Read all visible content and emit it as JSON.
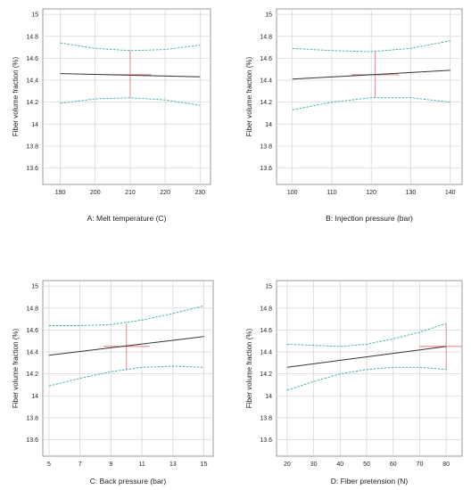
{
  "chart_data": [
    {
      "type": "line",
      "xlabel": "A: Melt temperature (C)",
      "ylabel": "Fiber volume fraction (%)",
      "xlim": [
        185,
        233
      ],
      "ylim": [
        13.45,
        15.05
      ],
      "xticks": [
        190,
        200,
        210,
        220,
        230
      ],
      "yticks": [
        13.6,
        13.8,
        14,
        14.2,
        14.4,
        14.6,
        14.8,
        15
      ],
      "grid": true,
      "series": [
        {
          "role": "prediction",
          "color": "#333333",
          "x": [
            190,
            230
          ],
          "y": [
            14.46,
            14.43
          ]
        },
        {
          "role": "upper-band",
          "color": "#3aa6a6",
          "x": [
            190,
            200,
            210,
            220,
            230
          ],
          "y": [
            14.74,
            14.69,
            14.67,
            14.68,
            14.72
          ]
        },
        {
          "role": "lower-band",
          "color": "#3aa6a6",
          "x": [
            190,
            200,
            210,
            220,
            230
          ],
          "y": [
            14.19,
            14.23,
            14.24,
            14.22,
            14.17
          ]
        }
      ],
      "crosshair": {
        "color": "#e87a7a",
        "x": 210,
        "y": 14.45,
        "x_span": [
          204,
          216
        ],
        "y_span": [
          14.24,
          14.67
        ]
      }
    },
    {
      "type": "line",
      "xlabel": "B: Injection pressure (bar)",
      "ylabel": "Fiber volume fraction (%)",
      "xlim": [
        96,
        143
      ],
      "ylim": [
        13.45,
        15.05
      ],
      "xticks": [
        100,
        110,
        120,
        130,
        140
      ],
      "yticks": [
        13.6,
        13.8,
        14,
        14.2,
        14.4,
        14.6,
        14.8,
        15
      ],
      "grid": true,
      "series": [
        {
          "role": "prediction",
          "color": "#333333",
          "x": [
            100,
            140
          ],
          "y": [
            14.41,
            14.49
          ]
        },
        {
          "role": "upper-band",
          "color": "#3aa6a6",
          "x": [
            100,
            110,
            120,
            130,
            140
          ],
          "y": [
            14.69,
            14.67,
            14.66,
            14.69,
            14.76
          ]
        },
        {
          "role": "lower-band",
          "color": "#3aa6a6",
          "x": [
            100,
            110,
            120,
            130,
            140
          ],
          "y": [
            14.13,
            14.2,
            14.24,
            14.24,
            14.2
          ]
        }
      ],
      "crosshair": {
        "color": "#e87a7a",
        "x": 121,
        "y": 14.45,
        "x_span": [
          115,
          127
        ],
        "y_span": [
          14.24,
          14.67
        ]
      }
    },
    {
      "type": "line",
      "xlabel": "C: Back pressure (bar)",
      "ylabel": "Fiber volume fraction (%)",
      "xlim": [
        4.6,
        15.6
      ],
      "ylim": [
        13.45,
        15.05
      ],
      "xticks": [
        5,
        7,
        9,
        11,
        13,
        15
      ],
      "yticks": [
        13.6,
        13.8,
        14,
        14.2,
        14.4,
        14.6,
        14.8,
        15
      ],
      "grid": true,
      "series": [
        {
          "role": "prediction",
          "color": "#333333",
          "x": [
            5,
            15
          ],
          "y": [
            14.37,
            14.54
          ]
        },
        {
          "role": "upper-band",
          "color": "#3aa6a6",
          "x": [
            5,
            7,
            9,
            11,
            13,
            15
          ],
          "y": [
            14.64,
            14.64,
            14.65,
            14.69,
            14.75,
            14.82
          ]
        },
        {
          "role": "lower-band",
          "color": "#3aa6a6",
          "x": [
            5,
            7,
            9,
            11,
            13,
            15
          ],
          "y": [
            14.09,
            14.16,
            14.22,
            14.26,
            14.27,
            14.26
          ]
        }
      ],
      "crosshair": {
        "color": "#e87a7a",
        "x": 10,
        "y": 14.45,
        "x_span": [
          8.5,
          11.5
        ],
        "y_span": [
          14.24,
          14.66
        ]
      }
    },
    {
      "type": "line",
      "xlabel": "D: Fiber pretension (N)",
      "ylabel": "Fiber volume fraction (%)",
      "xlim": [
        16,
        86
      ],
      "ylim": [
        13.45,
        15.05
      ],
      "xticks": [
        20,
        30,
        40,
        50,
        60,
        70,
        80
      ],
      "yticks": [
        13.6,
        13.8,
        14,
        14.2,
        14.4,
        14.6,
        14.8,
        15
      ],
      "grid": true,
      "series": [
        {
          "role": "prediction",
          "color": "#333333",
          "x": [
            20,
            80
          ],
          "y": [
            14.26,
            14.45
          ]
        },
        {
          "role": "upper-band",
          "color": "#3aa6a6",
          "x": [
            20,
            30,
            40,
            50,
            60,
            70,
            80
          ],
          "y": [
            14.47,
            14.46,
            14.45,
            14.47,
            14.52,
            14.58,
            14.66
          ]
        },
        {
          "role": "lower-band",
          "color": "#3aa6a6",
          "x": [
            20,
            30,
            40,
            50,
            60,
            70,
            80
          ],
          "y": [
            14.05,
            14.13,
            14.2,
            14.24,
            14.26,
            14.26,
            14.24
          ]
        }
      ],
      "crosshair": {
        "color": "#e87a7a",
        "x": 80,
        "y": 14.45,
        "x_span": [
          70,
          86
        ],
        "y_span": [
          14.24,
          14.66
        ]
      }
    }
  ]
}
